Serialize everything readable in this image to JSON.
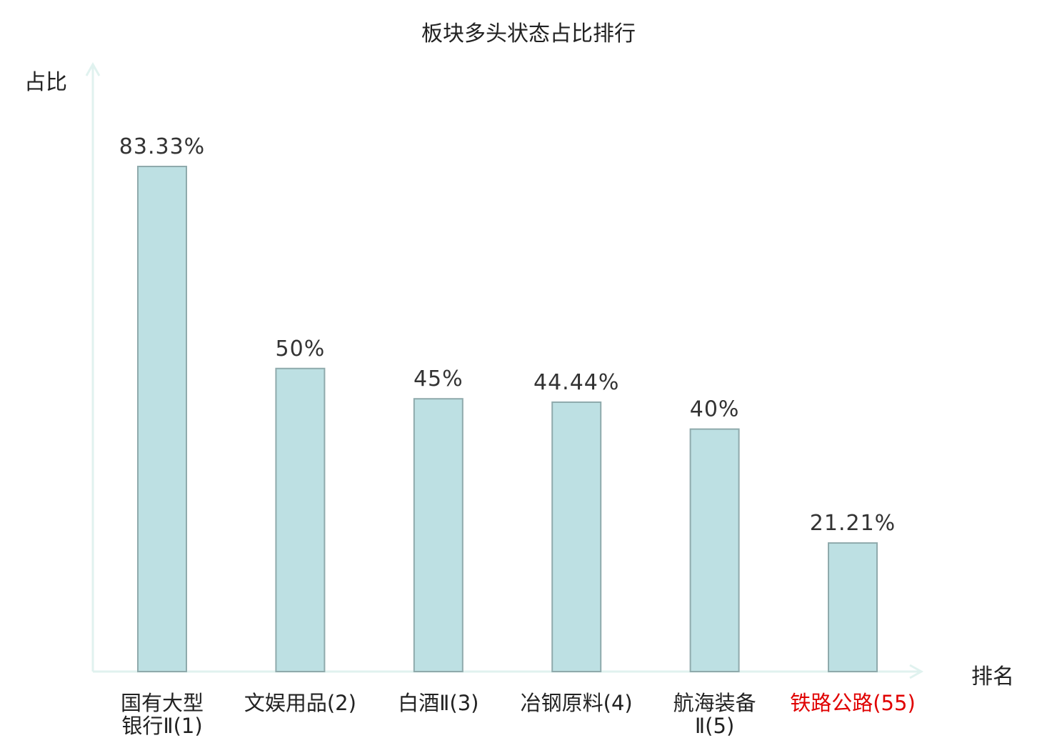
{
  "chart_data": {
    "type": "bar",
    "title": "板块多头状态占比排行",
    "xlabel": "排名",
    "ylabel": "占比",
    "ylim": [
      0,
      100
    ],
    "grid": false,
    "legend": "none",
    "categories": [
      {
        "lines": [
          "国有大型",
          "银行Ⅱ(1)"
        ],
        "highlight": false
      },
      {
        "lines": [
          "文娱用品(2)"
        ],
        "highlight": false
      },
      {
        "lines": [
          "白酒Ⅱ(3)"
        ],
        "highlight": false
      },
      {
        "lines": [
          "冶钢原料(4)"
        ],
        "highlight": false
      },
      {
        "lines": [
          "航海装备",
          "Ⅱ(5)"
        ],
        "highlight": false
      },
      {
        "lines": [
          "铁路公路(55)"
        ],
        "highlight": true
      }
    ],
    "values": [
      83.33,
      50,
      45,
      44.44,
      40,
      21.21
    ],
    "data_labels": [
      "83.33%",
      "50%",
      "45%",
      "44.44%",
      "40%",
      "21.21%"
    ]
  },
  "colors": {
    "bar_fill": "#bde0e3",
    "bar_stroke": "#8faaac",
    "axis": "#e0f2ef",
    "text": "#222222",
    "value_text": "#333333",
    "highlight": "#e00000"
  }
}
